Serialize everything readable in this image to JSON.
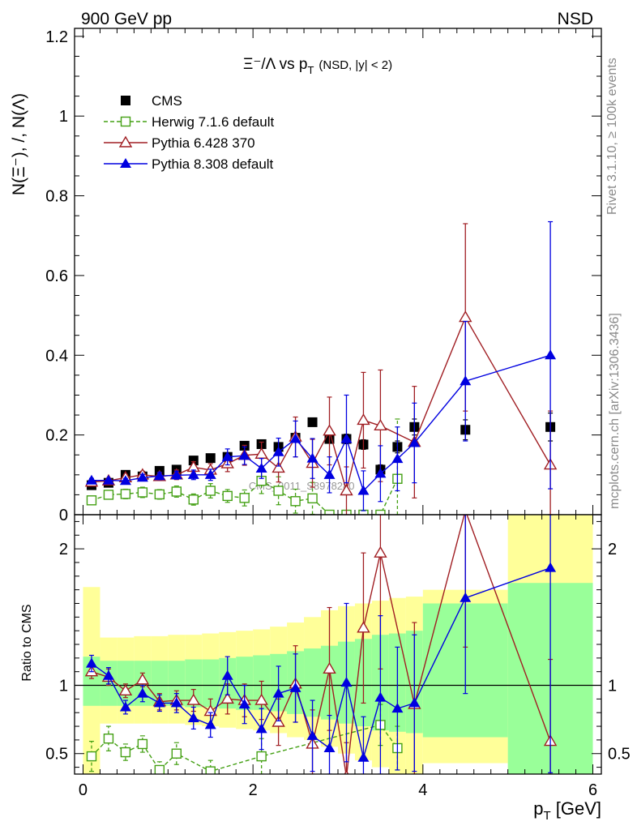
{
  "header": {
    "left": "900 GeV pp",
    "right": "NSD"
  },
  "side_labels": {
    "rivet": "Rivet 3.1.10, ≥ 100k events",
    "mcplots": "mcplots.cern.ch [arXiv:1306.3436]"
  },
  "title": {
    "main": "Ξ⁻/Λ  vs p",
    "sub": "T",
    "tail": "(NSD, |y| < 2)"
  },
  "watermark": "CMS_2011_S8978280",
  "chart_data": [
    {
      "type": "scatter",
      "panel": "main",
      "ylabel": "N(Ξ⁻), /, N(Λ)",
      "xlim": [
        -0.1,
        6.1
      ],
      "ylim": [
        0,
        1.22
      ],
      "yticks": [
        "0",
        "0.2",
        "0.4",
        "0.6",
        "0.8",
        "1",
        "1.2"
      ],
      "legend": [
        "CMS",
        "Herwig 7.1.6 default",
        "Pythia 6.428 370",
        "Pythia 8.308 default"
      ],
      "series": [
        {
          "name": "CMS",
          "color": "#000000",
          "marker": "square-filled",
          "x": [
            0.1,
            0.3,
            0.5,
            0.7,
            0.9,
            1.1,
            1.3,
            1.5,
            1.7,
            1.9,
            2.1,
            2.3,
            2.5,
            2.7,
            2.9,
            3.1,
            3.3,
            3.5,
            3.7,
            3.9,
            4.5,
            5.5
          ],
          "y": [
            0.074,
            0.08,
            0.1,
            0.096,
            0.11,
            0.113,
            0.136,
            0.142,
            0.145,
            0.173,
            0.177,
            0.17,
            0.193,
            0.232,
            0.19,
            0.19,
            0.176,
            0.113,
            0.17,
            0.22,
            0.213,
            0.22
          ],
          "err": [
            0.003,
            0.003,
            0.004,
            0.004,
            0.004,
            0.004,
            0.005,
            0.005,
            0.005,
            0.006,
            0.006,
            0.006,
            0.008,
            0.008,
            0.01,
            0.012,
            0.012,
            0.012,
            0.015,
            0.02,
            0.025,
            0.035
          ]
        },
        {
          "name": "Herwig 7.1.6 default",
          "color": "#44a014",
          "marker": "square-open",
          "dashed": true,
          "x": [
            0.1,
            0.3,
            0.5,
            0.7,
            0.9,
            1.1,
            1.3,
            1.5,
            1.7,
            1.9,
            2.1,
            2.3,
            2.5,
            2.7,
            2.9,
            3.1,
            3.3,
            3.5,
            3.7
          ],
          "y": [
            0.036,
            0.05,
            0.052,
            0.056,
            0.051,
            0.058,
            0.038,
            0.06,
            0.047,
            0.042,
            0.085,
            0.06,
            0.034,
            0.041,
            0.0,
            0.0,
            0.0,
            0.0,
            0.09
          ],
          "err": [
            0.008,
            0.01,
            0.012,
            0.013,
            0.012,
            0.014,
            0.014,
            0.018,
            0.016,
            0.02,
            0.032,
            0.035,
            0.03,
            0.04,
            0.0,
            0.0,
            0.0,
            0.0,
            0.15
          ]
        },
        {
          "name": "Pythia 6.428 370",
          "color": "#a01e23",
          "marker": "triangle-open",
          "x": [
            0.1,
            0.3,
            0.5,
            0.7,
            0.9,
            1.1,
            1.3,
            1.5,
            1.7,
            1.9,
            2.1,
            2.3,
            2.5,
            2.7,
            2.9,
            3.1,
            3.3,
            3.5,
            3.9,
            4.5,
            5.5
          ],
          "y": [
            0.082,
            0.085,
            0.093,
            0.1,
            0.096,
            0.1,
            0.119,
            0.112,
            0.128,
            0.149,
            0.152,
            0.117,
            0.195,
            0.129,
            0.21,
            0.06,
            0.237,
            0.223,
            0.182,
            0.495,
            0.125
          ],
          "err": [
            0.005,
            0.006,
            0.008,
            0.009,
            0.01,
            0.012,
            0.014,
            0.016,
            0.02,
            0.025,
            0.03,
            0.035,
            0.05,
            0.06,
            0.085,
            0.06,
            0.12,
            0.14,
            0.14,
            0.235,
            0.135
          ]
        },
        {
          "name": "Pythia 8.308 default",
          "color": "#0000e0",
          "marker": "triangle-filled",
          "x": [
            0.1,
            0.3,
            0.5,
            0.7,
            0.9,
            1.1,
            1.3,
            1.5,
            1.7,
            1.9,
            2.1,
            2.3,
            2.5,
            2.7,
            2.9,
            3.1,
            3.3,
            3.5,
            3.7,
            3.9,
            4.5,
            5.5
          ],
          "y": [
            0.086,
            0.086,
            0.085,
            0.093,
            0.097,
            0.099,
            0.1,
            0.1,
            0.145,
            0.148,
            0.116,
            0.157,
            0.19,
            0.141,
            0.1,
            0.19,
            0.06,
            0.103,
            0.14,
            0.18,
            0.335,
            0.4
          ],
          "err": [
            0.005,
            0.005,
            0.006,
            0.008,
            0.009,
            0.01,
            0.012,
            0.014,
            0.02,
            0.022,
            0.025,
            0.035,
            0.045,
            0.05,
            0.045,
            0.11,
            0.05,
            0.07,
            0.08,
            0.1,
            0.15,
            0.335
          ]
        }
      ]
    },
    {
      "type": "scatter",
      "panel": "ratio",
      "xlabel": "p_T [GeV]",
      "ylabel": "Ratio to CMS",
      "xlim": [
        -0.1,
        6.1
      ],
      "ylim": [
        0.35,
        2.25
      ],
      "xticks": [
        "0",
        "2",
        "4",
        "6"
      ],
      "yticks": [
        "0.5",
        "1",
        "2"
      ],
      "bands": {
        "edges": [
          0.0,
          0.2,
          0.4,
          0.6,
          0.8,
          1.0,
          1.2,
          1.4,
          1.6,
          1.8,
          2.0,
          2.2,
          2.4,
          2.6,
          2.8,
          3.0,
          3.2,
          3.4,
          3.6,
          3.8,
          4.0,
          5.0,
          6.0
        ],
        "yellow": [
          [
            0.35,
            1.72
          ],
          [
            0.72,
            1.35
          ],
          [
            0.72,
            1.35
          ],
          [
            0.72,
            1.36
          ],
          [
            0.72,
            1.36
          ],
          [
            0.72,
            1.37
          ],
          [
            0.71,
            1.37
          ],
          [
            0.7,
            1.38
          ],
          [
            0.69,
            1.39
          ],
          [
            0.68,
            1.4
          ],
          [
            0.67,
            1.41
          ],
          [
            0.65,
            1.43
          ],
          [
            0.62,
            1.46
          ],
          [
            0.6,
            1.5
          ],
          [
            0.55,
            1.55
          ],
          [
            0.5,
            1.58
          ],
          [
            0.45,
            1.6
          ],
          [
            0.4,
            1.62
          ],
          [
            0.35,
            1.64
          ],
          [
            0.35,
            1.65
          ],
          [
            0.43,
            1.7
          ],
          [
            0.35,
            2.25
          ]
        ],
        "green": [
          [
            0.85,
            1.21
          ],
          [
            0.85,
            1.18
          ],
          [
            0.85,
            1.18
          ],
          [
            0.85,
            1.18
          ],
          [
            0.85,
            1.18
          ],
          [
            0.85,
            1.18
          ],
          [
            0.84,
            1.19
          ],
          [
            0.84,
            1.19
          ],
          [
            0.83,
            1.2
          ],
          [
            0.82,
            1.21
          ],
          [
            0.82,
            1.22
          ],
          [
            0.81,
            1.23
          ],
          [
            0.79,
            1.25
          ],
          [
            0.77,
            1.27
          ],
          [
            0.75,
            1.29
          ],
          [
            0.72,
            1.32
          ],
          [
            0.7,
            1.34
          ],
          [
            0.67,
            1.37
          ],
          [
            0.66,
            1.38
          ],
          [
            0.65,
            1.4
          ],
          [
            0.62,
            1.6
          ],
          [
            0.35,
            1.75
          ]
        ]
      },
      "series": [
        {
          "name": "Herwig 7.1.6 default",
          "color": "#44a014",
          "marker": "square-open",
          "dashed": true,
          "x": [
            0.1,
            0.3,
            0.5,
            0.7,
            0.9,
            1.1,
            1.5,
            2.1,
            3.5,
            3.7
          ],
          "y": [
            0.48,
            0.61,
            0.51,
            0.57,
            0.38,
            0.5,
            0.37,
            0.48,
            0.71,
            0.54
          ],
          "err": [
            0.11,
            0.09,
            0.06,
            0.06,
            0.06,
            0.08,
            0.08,
            0.13,
            0.15,
            0.16
          ]
        },
        {
          "name": "Pythia 6.428 370",
          "color": "#a01e23",
          "marker": "triangle-open",
          "x": [
            0.1,
            0.3,
            0.5,
            0.7,
            0.9,
            1.1,
            1.3,
            1.5,
            1.7,
            1.9,
            2.1,
            2.3,
            2.5,
            2.7,
            2.9,
            3.1,
            3.3,
            3.5,
            3.9,
            4.5,
            5.5
          ],
          "y": [
            1.1,
            1.06,
            0.96,
            1.04,
            0.88,
            0.89,
            0.89,
            0.81,
            0.9,
            0.89,
            0.89,
            0.73,
            1.01,
            0.57,
            1.12,
            0.33,
            1.42,
            1.97,
            0.86,
            2.28,
            0.59
          ],
          "err": [
            0.05,
            0.06,
            0.05,
            0.05,
            0.06,
            0.07,
            0.08,
            0.09,
            0.11,
            0.12,
            0.14,
            0.17,
            0.28,
            0.25,
            0.45,
            0.25,
            0.55,
            0.85,
            0.6,
            1.0,
            0.6
          ]
        },
        {
          "name": "Pythia 8.308 default",
          "color": "#0000e0",
          "marker": "triangle-filled",
          "x": [
            0.1,
            0.3,
            0.5,
            0.7,
            0.9,
            1.1,
            1.3,
            1.5,
            1.7,
            1.9,
            2.1,
            2.3,
            2.5,
            2.7,
            2.9,
            3.1,
            3.3,
            3.5,
            3.7,
            3.9,
            4.5,
            5.5
          ],
          "y": [
            1.16,
            1.07,
            0.84,
            0.94,
            0.87,
            0.87,
            0.76,
            0.71,
            1.07,
            0.86,
            0.68,
            0.94,
            0.98,
            0.63,
            0.54,
            1.02,
            0.47,
            0.91,
            0.83,
            0.87,
            1.64,
            1.86
          ],
          "err": [
            0.06,
            0.06,
            0.05,
            0.06,
            0.06,
            0.07,
            0.08,
            0.09,
            0.14,
            0.14,
            0.15,
            0.2,
            0.25,
            0.26,
            0.24,
            0.58,
            0.3,
            0.6,
            0.45,
            0.5,
            0.7,
            1.5
          ]
        }
      ]
    }
  ]
}
